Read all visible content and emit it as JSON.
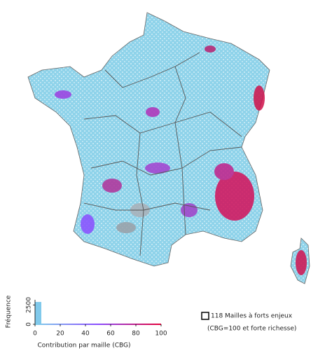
{
  "legend": {
    "title": "118 Mailles à forts enjeux",
    "subtitle": "(CBG=100 et forte richesse)"
  },
  "chart_data": {
    "type": "histogram",
    "xlabel": "Contribution par maille (CBG)",
    "ylabel": "Fréquence",
    "bins": [
      0,
      5,
      10,
      15,
      20,
      25,
      30,
      35,
      40,
      45,
      50,
      55,
      60,
      65,
      70,
      75,
      80,
      85,
      90,
      95,
      100
    ],
    "counts": [
      2900,
      60,
      30,
      20,
      15,
      12,
      10,
      8,
      8,
      6,
      6,
      5,
      5,
      5,
      4,
      4,
      4,
      4,
      4,
      40
    ],
    "xlim": [
      0,
      100
    ],
    "ylim": [
      0,
      3000
    ],
    "xticks": [
      0,
      20,
      40,
      60,
      80,
      100
    ],
    "yticks": [
      0,
      2500
    ],
    "colormap": [
      "#7fd0ea",
      "#8a4dff",
      "#e4003a"
    ]
  }
}
